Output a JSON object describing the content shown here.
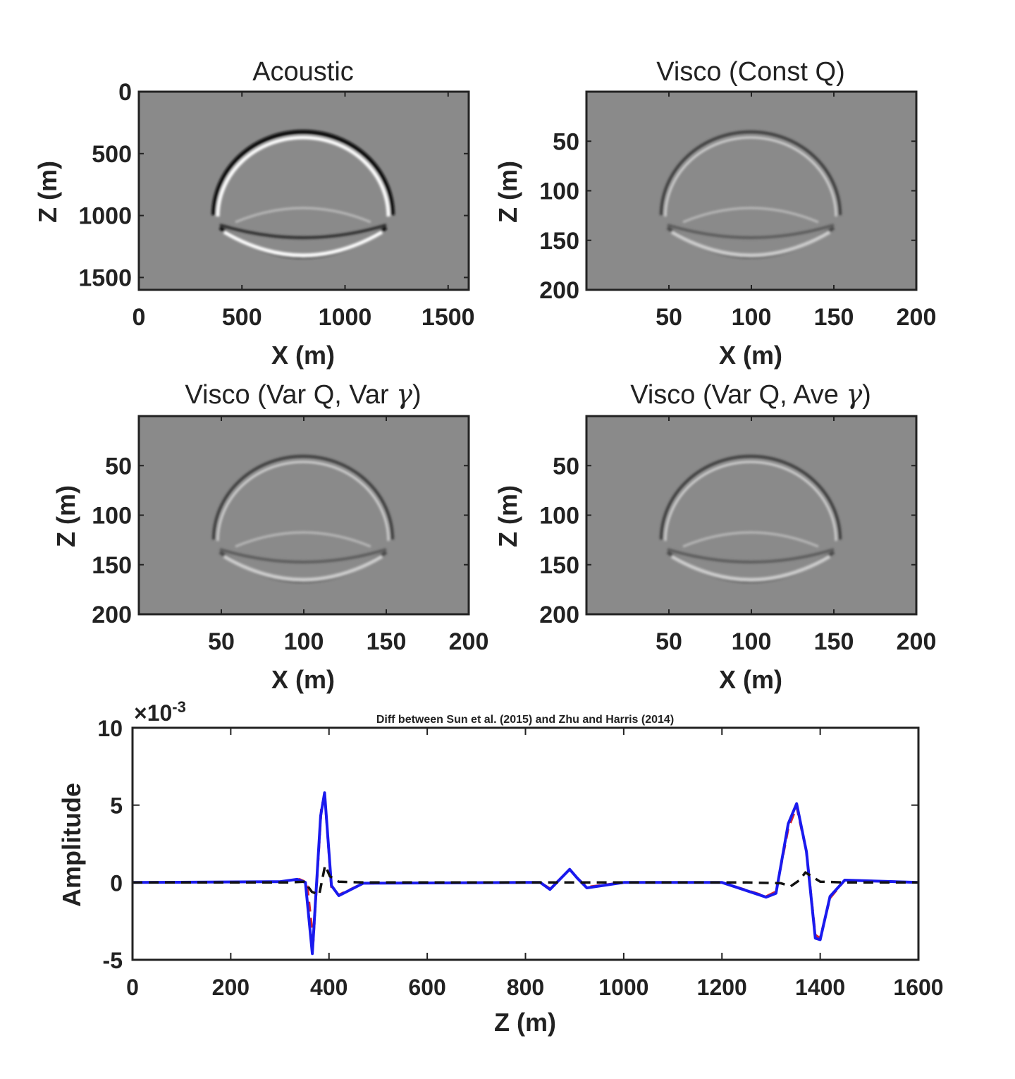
{
  "panels": [
    {
      "title": "Acoustic",
      "xlabel": "X (m)",
      "ylabel": "Z (m)",
      "xticks": [
        "0",
        "500",
        "1000",
        "1500"
      ],
      "yticks": [
        "0",
        "500",
        "1000",
        "1500"
      ],
      "xlim": [
        0,
        1600
      ],
      "ylim": [
        0,
        1600
      ],
      "intensity": "strong"
    },
    {
      "title": "Visco (Const Q)",
      "xlabel": "X (m)",
      "ylabel": "Z (m)",
      "xticks": [
        "50",
        "100",
        "150",
        "200"
      ],
      "yticks": [
        "50",
        "100",
        "150",
        "200"
      ],
      "xlim": [
        0,
        200
      ],
      "ylim": [
        0,
        200
      ],
      "intensity": "weak"
    },
    {
      "title": "Visco (Var Q, Var γ)",
      "title_main": "Visco (Var Q, Var ",
      "title_symbol": "γ",
      "title_end": ")",
      "xlabel": "X (m)",
      "ylabel": "Z (m)",
      "xticks": [
        "50",
        "100",
        "150",
        "200"
      ],
      "yticks": [
        "50",
        "100",
        "150",
        "200"
      ],
      "xlim": [
        0,
        200
      ],
      "ylim": [
        0,
        200
      ],
      "intensity": "weak"
    },
    {
      "title": "Visco (Var Q, Ave γ)",
      "title_main": "Visco (Var Q, Ave ",
      "title_symbol": "γ",
      "title_end": ")",
      "xlabel": "X (m)",
      "ylabel": "Z (m)",
      "xticks": [
        "50",
        "100",
        "150",
        "200"
      ],
      "yticks": [
        "50",
        "100",
        "150",
        "200"
      ],
      "xlim": [
        0,
        200
      ],
      "ylim": [
        0,
        200
      ],
      "intensity": "weak"
    }
  ],
  "chart_data": {
    "type": "line",
    "title": "Diff between Sun et al. (2015) and Zhu and Harris (2014)",
    "xlabel": "Z (m)",
    "ylabel": "Amplitude",
    "exponent_label": "×10",
    "exponent_power": "-3",
    "xlim": [
      0,
      1600
    ],
    "ylim": [
      -5,
      10
    ],
    "xticks": [
      "0",
      "200",
      "400",
      "600",
      "800",
      "1000",
      "1200",
      "1400",
      "1600"
    ],
    "yticks": [
      "-5",
      "0",
      "5",
      "10"
    ],
    "series": [
      {
        "color": "#d8262b",
        "style": "dashed",
        "x": [
          0,
          300,
          340,
          355,
          368,
          385,
          392,
          405,
          420,
          470,
          800,
          830,
          850,
          870,
          890,
          905,
          925,
          1000,
          1200,
          1290,
          1310,
          1335,
          1352,
          1372,
          1390,
          1400,
          1420,
          1450,
          1600
        ],
        "y": [
          0,
          0.05,
          0.2,
          0,
          -3.8,
          5.1,
          5.3,
          -0.3,
          -0.8,
          -0.05,
          0,
          0,
          -0.4,
          0.2,
          0.85,
          0.3,
          -0.3,
          0,
          0,
          -0.9,
          -0.6,
          3.5,
          4.9,
          2.0,
          -3.4,
          -3.6,
          -1.0,
          0.15,
          0
        ]
      },
      {
        "color": "#1a1aee",
        "style": "solid",
        "x": [
          0,
          300,
          335,
          352,
          366,
          383,
          391,
          405,
          420,
          470,
          800,
          830,
          850,
          870,
          890,
          905,
          925,
          1000,
          1200,
          1290,
          1310,
          1335,
          1352,
          1372,
          1390,
          1400,
          1420,
          1450,
          1600
        ],
        "y": [
          0,
          0.05,
          0.2,
          0,
          -4.6,
          4.3,
          5.8,
          -0.2,
          -0.85,
          -0.05,
          0,
          0,
          -0.45,
          0.2,
          0.85,
          0.3,
          -0.35,
          0,
          0,
          -0.95,
          -0.7,
          3.8,
          5.1,
          2.0,
          -3.6,
          -3.7,
          -0.9,
          0.15,
          0
        ]
      },
      {
        "color": "#111111",
        "style": "dashed",
        "x": [
          0,
          320,
          350,
          365,
          380,
          392,
          402,
          420,
          470,
          800,
          1000,
          1250,
          1320,
          1340,
          1358,
          1370,
          1385,
          1400,
          1450,
          1600
        ],
        "y": [
          0,
          0,
          0.05,
          -0.6,
          -0.8,
          1.1,
          0.4,
          0.05,
          0,
          0,
          0,
          0,
          -0.05,
          -0.25,
          0.15,
          0.65,
          0.35,
          0.05,
          0,
          0
        ]
      }
    ]
  }
}
